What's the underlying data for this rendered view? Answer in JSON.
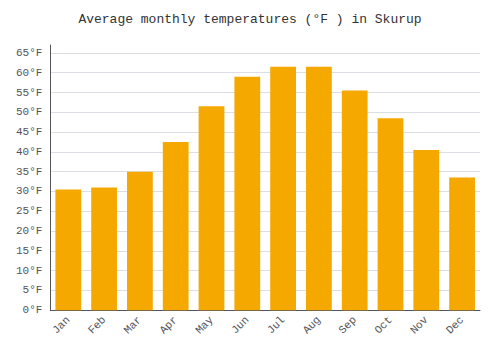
{
  "chart_data": {
    "type": "bar",
    "title": "Average monthly temperatures (°F ) in Skurup",
    "categories": [
      "Jan",
      "Feb",
      "Mar",
      "Apr",
      "May",
      "Jun",
      "Jul",
      "Aug",
      "Sep",
      "Oct",
      "Nov",
      "Dec"
    ],
    "values": [
      30.5,
      31.0,
      35.0,
      42.5,
      51.5,
      59.0,
      61.5,
      61.5,
      55.5,
      48.5,
      40.5,
      33.5
    ],
    "color": "#F5A800",
    "ylim": [
      0,
      67
    ],
    "yticks": [
      {
        "value": 0,
        "label": "0°F"
      },
      {
        "value": 5,
        "label": "5°F"
      },
      {
        "value": 10,
        "label": "10°F"
      },
      {
        "value": 15,
        "label": "15°F"
      },
      {
        "value": 20,
        "label": "20°F"
      },
      {
        "value": 25,
        "label": "25°F"
      },
      {
        "value": 30,
        "label": "30°F"
      },
      {
        "value": 35,
        "label": "35°F"
      },
      {
        "value": 40,
        "label": "40°F"
      },
      {
        "value": 45,
        "label": "45°F"
      },
      {
        "value": 50,
        "label": "50°F"
      },
      {
        "value": 55,
        "label": "55°F"
      },
      {
        "value": 60,
        "label": "60°F"
      },
      {
        "value": 65,
        "label": "65°F"
      }
    ],
    "grid": true
  }
}
